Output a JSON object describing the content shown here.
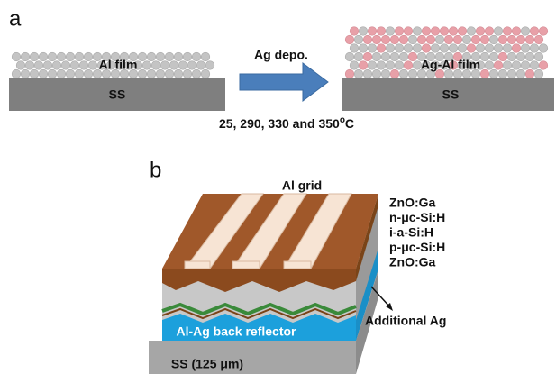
{
  "panel_a": {
    "label": "a",
    "left_film": "Al film",
    "left_substrate": "SS",
    "arrow_label": "Ag depo.",
    "right_film": "Ag-Al film",
    "right_substrate": "SS",
    "temperatures": {
      "main": "25, 290, 330 and 350",
      "sup": "o",
      "unit": "C"
    }
  },
  "panel_b": {
    "label": "b",
    "grid_label": "Al grid",
    "layers": [
      "ZnO:Ga",
      "n-μc-Si:H",
      "i-a-Si:H",
      "p-μc-Si:H",
      "ZnO:Ga"
    ],
    "additional": "Additional Ag",
    "reflector": "Al-Ag back reflector",
    "substrate": "SS (125 μm)"
  }
}
